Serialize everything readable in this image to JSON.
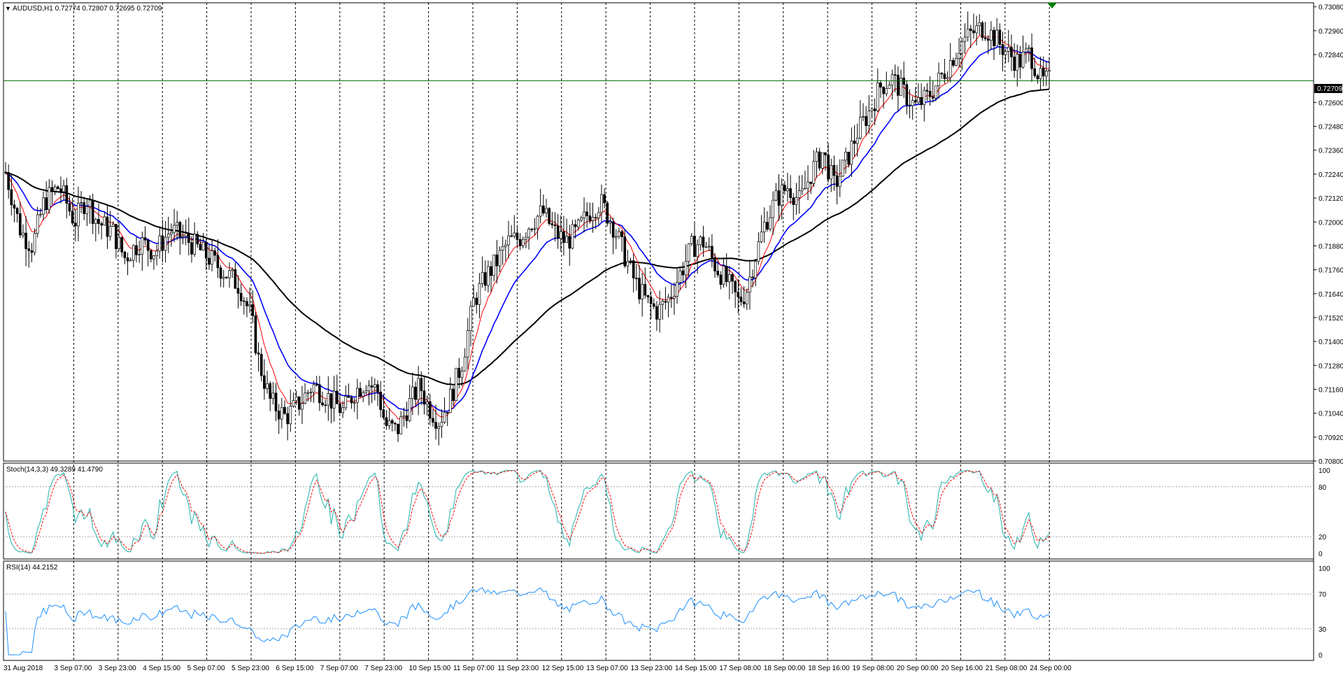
{
  "header": {
    "symbol_info": "AUDUSD,H1  0.72774 0.72807 0.72695 0.72709",
    "collapse_icon": "triangle-down-icon"
  },
  "current_price": "0.72709",
  "colors": {
    "background": "#ffffff",
    "grid": "#000000",
    "bull_candle": "#000000",
    "bear_candle": "#000000",
    "ma_fast": "#ff0000",
    "ma_mid": "#0000ff",
    "ma_slow": "#000000",
    "price_line": "#006400",
    "stoch_main": "#20b2aa",
    "stoch_signal": "#ff0000",
    "rsi": "#1e90ff",
    "arrow_marker": "#008000"
  },
  "time_ticks": [
    "31 Aug 2018",
    "3 Sep 07:00",
    "3 Sep 23:00",
    "4 Sep 15:00",
    "5 Sep 07:00",
    "5 Sep 23:00",
    "6 Sep 15:00",
    "7 Sep 07:00",
    "7 Sep 23:00",
    "10 Sep 15:00",
    "11 Sep 07:00",
    "11 Sep 23:00",
    "12 Sep 15:00",
    "13 Sep 07:00",
    "13 Sep 23:00",
    "14 Sep 15:00",
    "17 Sep 08:00",
    "18 Sep 00:00",
    "18 Sep 16:00",
    "19 Sep 08:00",
    "20 Sep 00:00",
    "20 Sep 16:00",
    "21 Sep 08:00",
    "24 Sep 00:00"
  ],
  "price_axis": [
    "0.73080",
    "0.72960",
    "0.72840",
    "0.72600",
    "0.72480",
    "0.72360",
    "0.72240",
    "0.72120",
    "0.72000",
    "0.71880",
    "0.71760",
    "0.71640",
    "0.71520",
    "0.71400",
    "0.71280",
    "0.71160",
    "0.71040",
    "0.70920",
    "0.70800"
  ],
  "price_range": [
    0.708,
    0.731
  ],
  "stoch": {
    "label": "Stoch(14,3,3) 49.3289 41.4790",
    "levels": [
      "100",
      "80",
      "20",
      "0"
    ]
  },
  "rsi": {
    "label": "RSI(14) 44.2152",
    "levels": [
      "100",
      "70",
      "30",
      "0"
    ]
  },
  "chart_data": {
    "type": "line",
    "series": [
      {
        "name": "",
        "points": [
          [
            0,
            0.7225
          ],
          [
            8,
            0.7195
          ],
          [
            14,
            0.7188
          ],
          [
            20,
            0.721
          ],
          [
            28,
            0.7218
          ],
          [
            36,
            0.72
          ],
          [
            42,
            0.7212
          ],
          [
            48,
            0.72
          ],
          [
            56,
            0.7195
          ],
          [
            62,
            0.7182
          ],
          [
            70,
            0.719
          ],
          [
            78,
            0.7185
          ],
          [
            86,
            0.7196
          ],
          [
            96,
            0.719
          ],
          [
            106,
            0.7182
          ],
          [
            114,
            0.7175
          ],
          [
            122,
            0.7168
          ],
          [
            128,
            0.7152
          ],
          [
            132,
            0.713
          ],
          [
            138,
            0.711
          ],
          [
            146,
            0.7102
          ],
          [
            154,
            0.711
          ],
          [
            160,
            0.7118
          ],
          [
            168,
            0.7112
          ],
          [
            176,
            0.7105
          ],
          [
            182,
            0.7115
          ],
          [
            188,
            0.712
          ],
          [
            194,
            0.7115
          ],
          [
            198,
            0.7098
          ],
          [
            204,
            0.7095
          ],
          [
            210,
            0.7108
          ],
          [
            216,
            0.7118
          ],
          [
            220,
            0.7108
          ],
          [
            226,
            0.71
          ],
          [
            232,
            0.7112
          ],
          [
            238,
            0.713
          ],
          [
            244,
            0.716
          ],
          [
            250,
            0.7172
          ],
          [
            256,
            0.718
          ],
          [
            262,
            0.719
          ],
          [
            268,
            0.7192
          ],
          [
            274,
            0.72
          ],
          [
            280,
            0.7205
          ],
          [
            286,
            0.7195
          ],
          [
            292,
            0.719
          ],
          [
            298,
            0.7195
          ],
          [
            304,
            0.7205
          ],
          [
            310,
            0.721
          ],
          [
            316,
            0.72
          ],
          [
            322,
            0.7185
          ],
          [
            328,
            0.717
          ],
          [
            334,
            0.716
          ],
          [
            340,
            0.7155
          ],
          [
            346,
            0.7162
          ],
          [
            352,
            0.7175
          ],
          [
            358,
            0.7188
          ],
          [
            364,
            0.719
          ],
          [
            370,
            0.7178
          ],
          [
            376,
            0.717
          ],
          [
            382,
            0.716
          ],
          [
            386,
            0.7165
          ],
          [
            390,
            0.718
          ],
          [
            396,
            0.72
          ],
          [
            402,
            0.7212
          ],
          [
            408,
            0.7218
          ],
          [
            414,
            0.721
          ],
          [
            420,
            0.7225
          ],
          [
            426,
            0.7235
          ],
          [
            432,
            0.7218
          ],
          [
            438,
            0.723
          ],
          [
            444,
            0.7245
          ],
          [
            450,
            0.7255
          ],
          [
            456,
            0.7268
          ],
          [
            462,
            0.7272
          ],
          [
            468,
            0.7265
          ],
          [
            474,
            0.7258
          ],
          [
            480,
            0.7262
          ],
          [
            486,
            0.727
          ],
          [
            492,
            0.728
          ],
          [
            498,
            0.729
          ],
          [
            504,
            0.7295
          ],
          [
            510,
            0.7298
          ],
          [
            516,
            0.7292
          ],
          [
            522,
            0.7285
          ],
          [
            528,
            0.728
          ],
          [
            534,
            0.7285
          ],
          [
            540,
            0.727
          ],
          [
            544,
            0.7271
          ]
        ]
      }
    ]
  }
}
